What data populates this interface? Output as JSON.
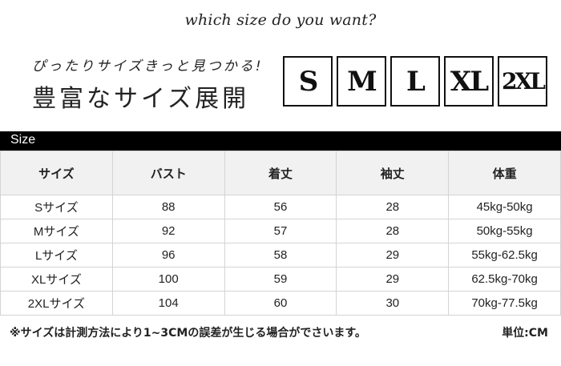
{
  "tagline": "which size do you want?",
  "catch_line1": "ぴったりサイズきっと見つかる!",
  "catch_line2": "豊富なサイズ展開",
  "size_boxes": [
    "S",
    "M",
    "L",
    "XL",
    "2XL"
  ],
  "section_label": "Size",
  "table": {
    "headers": [
      "サイズ",
      "バスト",
      "着丈",
      "袖丈",
      "体重"
    ],
    "rows": [
      [
        "Sサイズ",
        "88",
        "56",
        "28",
        "45kg-50kg"
      ],
      [
        "Mサイズ",
        "92",
        "57",
        "28",
        "50kg-55kg"
      ],
      [
        "Lサイズ",
        "96",
        "58",
        "29",
        "55kg-62.5kg"
      ],
      [
        "XLサイズ",
        "100",
        "59",
        "29",
        "62.5kg-70kg"
      ],
      [
        "2XLサイズ",
        "104",
        "60",
        "30",
        "70kg-77.5kg"
      ]
    ]
  },
  "note": "※サイズは計測方法により1~3CMの誤差が生じる場合がでさいます。",
  "unit": "単位:CM"
}
